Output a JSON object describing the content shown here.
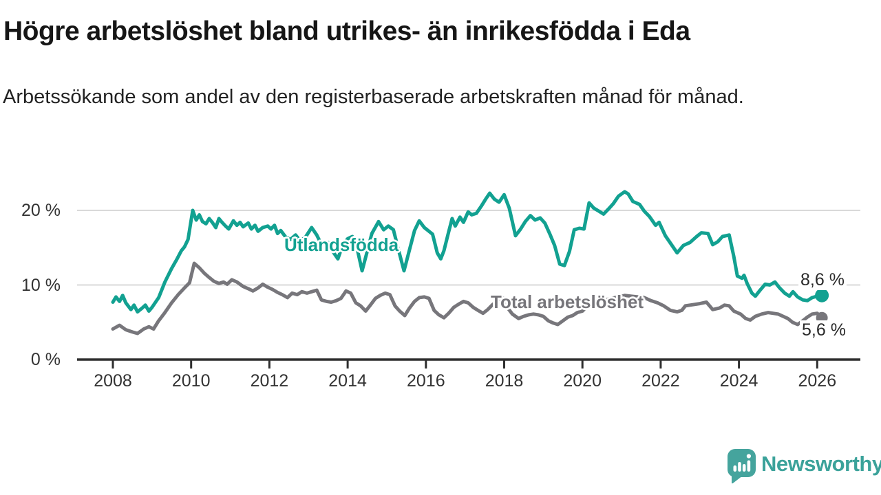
{
  "header": {
    "title": "Högre arbetslöshet bland utrikes- än inrikesfödda i Eda",
    "subtitle": "Arbetssökande som andel av den registerbaserade arbetskraften månad för månad."
  },
  "chart_data": {
    "type": "line",
    "unit": "%",
    "title": "Högre arbetslöshet bland utrikes- än inrikesfödda i Eda",
    "xlabel": "",
    "ylabel": "",
    "xlim": [
      2007.9,
      2027.1
    ],
    "ylim": [
      0,
      22.5
    ],
    "grid": "horizontal",
    "legend_position": "inline-labels",
    "x_ticks": [
      2008,
      2010,
      2012,
      2014,
      2016,
      2018,
      2020,
      2022,
      2024,
      2026
    ],
    "y_ticks": [
      {
        "value": 0,
        "label": "0 %"
      },
      {
        "value": 10,
        "label": "10 %"
      },
      {
        "value": 20,
        "label": "20 %"
      }
    ],
    "series": [
      {
        "name": "Utlandsfödda",
        "color": "#12a191",
        "end_label": "8,6 %",
        "end_value": 8.6,
        "points": [
          [
            2008.0,
            7.7
          ],
          [
            2008.08,
            8.4
          ],
          [
            2008.17,
            7.8
          ],
          [
            2008.25,
            8.6
          ],
          [
            2008.33,
            7.6
          ],
          [
            2008.46,
            6.7
          ],
          [
            2008.54,
            7.3
          ],
          [
            2008.63,
            6.4
          ],
          [
            2008.75,
            6.9
          ],
          [
            2008.83,
            7.3
          ],
          [
            2008.92,
            6.5
          ],
          [
            2009.0,
            7.0
          ],
          [
            2009.17,
            8.3
          ],
          [
            2009.33,
            10.4
          ],
          [
            2009.5,
            12.2
          ],
          [
            2009.63,
            13.4
          ],
          [
            2009.75,
            14.6
          ],
          [
            2009.83,
            15.1
          ],
          [
            2009.92,
            16.1
          ],
          [
            2010.04,
            20.0
          ],
          [
            2010.13,
            18.7
          ],
          [
            2010.21,
            19.4
          ],
          [
            2010.29,
            18.5
          ],
          [
            2010.38,
            18.2
          ],
          [
            2010.46,
            18.9
          ],
          [
            2010.54,
            18.4
          ],
          [
            2010.63,
            17.7
          ],
          [
            2010.71,
            18.9
          ],
          [
            2010.79,
            18.4
          ],
          [
            2010.88,
            17.9
          ],
          [
            2010.96,
            17.5
          ],
          [
            2011.08,
            18.6
          ],
          [
            2011.17,
            18.0
          ],
          [
            2011.25,
            18.4
          ],
          [
            2011.33,
            17.8
          ],
          [
            2011.46,
            18.3
          ],
          [
            2011.54,
            17.5
          ],
          [
            2011.63,
            18.0
          ],
          [
            2011.71,
            17.2
          ],
          [
            2011.83,
            17.7
          ],
          [
            2011.96,
            17.9
          ],
          [
            2012.04,
            17.5
          ],
          [
            2012.13,
            18.0
          ],
          [
            2012.21,
            16.9
          ],
          [
            2012.29,
            17.3
          ],
          [
            2012.42,
            16.4
          ],
          [
            2012.54,
            16.1
          ],
          [
            2012.67,
            16.7
          ],
          [
            2012.79,
            15.9
          ],
          [
            2012.92,
            16.4
          ],
          [
            2013.08,
            17.7
          ],
          [
            2013.21,
            16.7
          ],
          [
            2013.37,
            15.0
          ],
          [
            2013.5,
            15.7
          ],
          [
            2013.62,
            14.5
          ],
          [
            2013.75,
            13.5
          ],
          [
            2013.87,
            15.3
          ],
          [
            2014.0,
            16.2
          ],
          [
            2014.12,
            16.5
          ],
          [
            2014.25,
            14.7
          ],
          [
            2014.37,
            11.9
          ],
          [
            2014.5,
            14.5
          ],
          [
            2014.62,
            16.9
          ],
          [
            2014.79,
            18.5
          ],
          [
            2014.92,
            17.4
          ],
          [
            2015.04,
            17.9
          ],
          [
            2015.17,
            17.4
          ],
          [
            2015.29,
            14.9
          ],
          [
            2015.44,
            11.9
          ],
          [
            2015.58,
            14.7
          ],
          [
            2015.71,
            17.3
          ],
          [
            2015.83,
            18.6
          ],
          [
            2015.96,
            17.7
          ],
          [
            2016.08,
            17.2
          ],
          [
            2016.17,
            16.8
          ],
          [
            2016.29,
            14.3
          ],
          [
            2016.38,
            13.5
          ],
          [
            2016.46,
            14.6
          ],
          [
            2016.58,
            17.1
          ],
          [
            2016.67,
            18.9
          ],
          [
            2016.75,
            17.9
          ],
          [
            2016.87,
            19.1
          ],
          [
            2016.96,
            18.4
          ],
          [
            2017.08,
            19.8
          ],
          [
            2017.17,
            19.4
          ],
          [
            2017.29,
            19.6
          ],
          [
            2017.42,
            20.6
          ],
          [
            2017.54,
            21.6
          ],
          [
            2017.63,
            22.3
          ],
          [
            2017.75,
            21.5
          ],
          [
            2017.87,
            21.1
          ],
          [
            2018.0,
            22.1
          ],
          [
            2018.13,
            20.3
          ],
          [
            2018.29,
            16.6
          ],
          [
            2018.42,
            17.5
          ],
          [
            2018.54,
            18.5
          ],
          [
            2018.67,
            19.3
          ],
          [
            2018.79,
            18.7
          ],
          [
            2018.92,
            19.0
          ],
          [
            2019.04,
            18.3
          ],
          [
            2019.17,
            16.8
          ],
          [
            2019.29,
            15.3
          ],
          [
            2019.42,
            12.8
          ],
          [
            2019.54,
            12.6
          ],
          [
            2019.67,
            14.5
          ],
          [
            2019.79,
            17.4
          ],
          [
            2019.92,
            17.6
          ],
          [
            2020.04,
            17.5
          ],
          [
            2020.17,
            21.0
          ],
          [
            2020.29,
            20.3
          ],
          [
            2020.42,
            19.9
          ],
          [
            2020.54,
            19.5
          ],
          [
            2020.67,
            20.2
          ],
          [
            2020.79,
            20.9
          ],
          [
            2020.92,
            21.9
          ],
          [
            2021.08,
            22.5
          ],
          [
            2021.17,
            22.2
          ],
          [
            2021.29,
            21.2
          ],
          [
            2021.46,
            20.8
          ],
          [
            2021.58,
            19.9
          ],
          [
            2021.71,
            19.2
          ],
          [
            2021.87,
            18.0
          ],
          [
            2021.96,
            18.4
          ],
          [
            2022.12,
            16.6
          ],
          [
            2022.25,
            15.6
          ],
          [
            2022.42,
            14.3
          ],
          [
            2022.58,
            15.3
          ],
          [
            2022.75,
            15.7
          ],
          [
            2022.92,
            16.5
          ],
          [
            2023.04,
            17.0
          ],
          [
            2023.21,
            16.9
          ],
          [
            2023.33,
            15.4
          ],
          [
            2023.46,
            15.8
          ],
          [
            2023.58,
            16.5
          ],
          [
            2023.75,
            16.7
          ],
          [
            2023.87,
            13.8
          ],
          [
            2023.96,
            11.2
          ],
          [
            2024.08,
            10.9
          ],
          [
            2024.13,
            11.3
          ],
          [
            2024.21,
            10.2
          ],
          [
            2024.33,
            8.9
          ],
          [
            2024.42,
            8.5
          ],
          [
            2024.54,
            9.3
          ],
          [
            2024.67,
            10.1
          ],
          [
            2024.79,
            10.0
          ],
          [
            2024.92,
            10.4
          ],
          [
            2025.04,
            9.6
          ],
          [
            2025.17,
            8.9
          ],
          [
            2025.29,
            8.5
          ],
          [
            2025.38,
            9.1
          ],
          [
            2025.5,
            8.4
          ],
          [
            2025.63,
            8.0
          ],
          [
            2025.75,
            7.9
          ],
          [
            2025.87,
            8.3
          ],
          [
            2026.0,
            8.5
          ],
          [
            2026.12,
            8.6
          ]
        ]
      },
      {
        "name": "Total arbetslöshet",
        "color": "#77767b",
        "end_label": "5,6 %",
        "end_value": 5.6,
        "points": [
          [
            2008.0,
            4.1
          ],
          [
            2008.17,
            4.6
          ],
          [
            2008.33,
            4.0
          ],
          [
            2008.5,
            3.7
          ],
          [
            2008.63,
            3.5
          ],
          [
            2008.79,
            4.1
          ],
          [
            2008.92,
            4.4
          ],
          [
            2009.04,
            4.1
          ],
          [
            2009.17,
            5.2
          ],
          [
            2009.33,
            6.3
          ],
          [
            2009.5,
            7.6
          ],
          [
            2009.67,
            8.7
          ],
          [
            2009.83,
            9.6
          ],
          [
            2009.96,
            10.3
          ],
          [
            2010.08,
            12.9
          ],
          [
            2010.21,
            12.3
          ],
          [
            2010.33,
            11.6
          ],
          [
            2010.46,
            11.0
          ],
          [
            2010.58,
            10.5
          ],
          [
            2010.71,
            10.2
          ],
          [
            2010.83,
            10.4
          ],
          [
            2010.92,
            10.1
          ],
          [
            2011.04,
            10.7
          ],
          [
            2011.17,
            10.4
          ],
          [
            2011.33,
            9.8
          ],
          [
            2011.46,
            9.5
          ],
          [
            2011.58,
            9.2
          ],
          [
            2011.71,
            9.6
          ],
          [
            2011.83,
            10.1
          ],
          [
            2011.96,
            9.7
          ],
          [
            2012.08,
            9.4
          ],
          [
            2012.21,
            9.0
          ],
          [
            2012.33,
            8.7
          ],
          [
            2012.46,
            8.3
          ],
          [
            2012.58,
            8.9
          ],
          [
            2012.71,
            8.7
          ],
          [
            2012.83,
            9.1
          ],
          [
            2012.96,
            8.9
          ],
          [
            2013.08,
            9.1
          ],
          [
            2013.21,
            9.3
          ],
          [
            2013.33,
            8.0
          ],
          [
            2013.46,
            7.8
          ],
          [
            2013.58,
            7.7
          ],
          [
            2013.71,
            7.9
          ],
          [
            2013.83,
            8.2
          ],
          [
            2013.96,
            9.2
          ],
          [
            2014.08,
            8.9
          ],
          [
            2014.21,
            7.6
          ],
          [
            2014.33,
            7.2
          ],
          [
            2014.46,
            6.5
          ],
          [
            2014.58,
            7.3
          ],
          [
            2014.71,
            8.2
          ],
          [
            2014.83,
            8.6
          ],
          [
            2014.96,
            8.9
          ],
          [
            2015.08,
            8.7
          ],
          [
            2015.21,
            7.2
          ],
          [
            2015.33,
            6.5
          ],
          [
            2015.46,
            5.9
          ],
          [
            2015.58,
            6.9
          ],
          [
            2015.71,
            7.8
          ],
          [
            2015.83,
            8.3
          ],
          [
            2015.96,
            8.4
          ],
          [
            2016.08,
            8.2
          ],
          [
            2016.21,
            6.6
          ],
          [
            2016.33,
            6.0
          ],
          [
            2016.46,
            5.6
          ],
          [
            2016.58,
            6.2
          ],
          [
            2016.71,
            7.0
          ],
          [
            2016.83,
            7.4
          ],
          [
            2016.96,
            7.8
          ],
          [
            2017.08,
            7.6
          ],
          [
            2017.21,
            7.0
          ],
          [
            2017.33,
            6.6
          ],
          [
            2017.46,
            6.2
          ],
          [
            2017.58,
            6.7
          ],
          [
            2017.71,
            7.4
          ],
          [
            2017.83,
            7.8
          ],
          [
            2017.96,
            8.3
          ],
          [
            2018.08,
            7.0
          ],
          [
            2018.21,
            6.1
          ],
          [
            2018.37,
            5.5
          ],
          [
            2018.5,
            5.8
          ],
          [
            2018.63,
            6.0
          ],
          [
            2018.75,
            6.1
          ],
          [
            2018.87,
            6.0
          ],
          [
            2019.0,
            5.8
          ],
          [
            2019.13,
            5.2
          ],
          [
            2019.25,
            4.9
          ],
          [
            2019.37,
            4.7
          ],
          [
            2019.5,
            5.2
          ],
          [
            2019.63,
            5.7
          ],
          [
            2019.75,
            5.9
          ],
          [
            2019.87,
            6.3
          ],
          [
            2020.0,
            6.5
          ],
          [
            2020.17,
            7.4
          ],
          [
            2020.33,
            7.8
          ],
          [
            2020.5,
            7.9
          ],
          [
            2020.67,
            8.1
          ],
          [
            2020.83,
            8.3
          ],
          [
            2020.96,
            8.4
          ],
          [
            2021.08,
            8.6
          ],
          [
            2021.25,
            8.5
          ],
          [
            2021.42,
            8.4
          ],
          [
            2021.58,
            8.3
          ],
          [
            2021.75,
            7.9
          ],
          [
            2021.92,
            7.6
          ],
          [
            2022.08,
            7.2
          ],
          [
            2022.25,
            6.6
          ],
          [
            2022.42,
            6.4
          ],
          [
            2022.54,
            6.6
          ],
          [
            2022.63,
            7.2
          ],
          [
            2022.75,
            7.3
          ],
          [
            2022.88,
            7.4
          ],
          [
            2023.0,
            7.5
          ],
          [
            2023.17,
            7.7
          ],
          [
            2023.33,
            6.7
          ],
          [
            2023.5,
            6.9
          ],
          [
            2023.63,
            7.3
          ],
          [
            2023.75,
            7.2
          ],
          [
            2023.87,
            6.5
          ],
          [
            2024.04,
            6.1
          ],
          [
            2024.17,
            5.5
          ],
          [
            2024.29,
            5.3
          ],
          [
            2024.42,
            5.8
          ],
          [
            2024.58,
            6.1
          ],
          [
            2024.75,
            6.3
          ],
          [
            2024.87,
            6.2
          ],
          [
            2025.0,
            6.1
          ],
          [
            2025.13,
            5.8
          ],
          [
            2025.25,
            5.5
          ],
          [
            2025.37,
            5.0
          ],
          [
            2025.5,
            4.7
          ],
          [
            2025.63,
            5.2
          ],
          [
            2025.75,
            5.7
          ],
          [
            2025.87,
            6.1
          ],
          [
            2026.0,
            6.2
          ],
          [
            2026.12,
            5.6
          ]
        ]
      }
    ]
  },
  "branding": {
    "wordmark": "Newsworthy",
    "icon": "bar-chart-speech-bubble-icon",
    "color": "#3ba29a"
  },
  "colors": {
    "grid": "#d9d9d9",
    "axis": "#2f2f2f",
    "tick_text": "#333333"
  }
}
